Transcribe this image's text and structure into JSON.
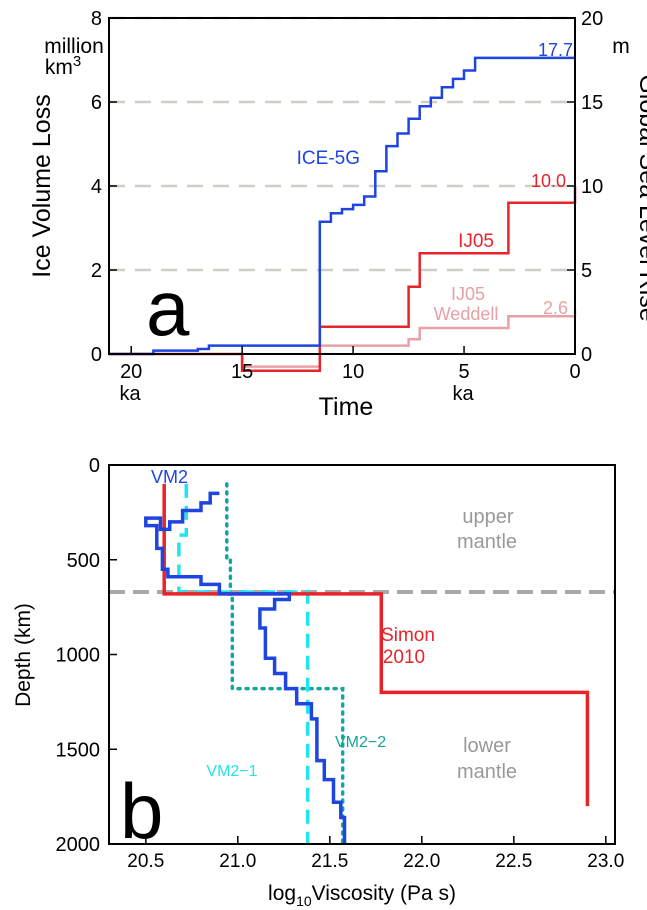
{
  "chart_data": [
    {
      "panel": "a",
      "type": "line",
      "panel_label": "a",
      "xlabel": "Time",
      "x_unit_left": "ka",
      "x_unit_right": "ka",
      "x_reversed": true,
      "xlim": [
        21,
        0
      ],
      "x_ticks": [
        20,
        15,
        10,
        5,
        0
      ],
      "ylabel_left": "Ice Volume Loss",
      "ylabel_left_unit": [
        "million",
        "km3"
      ],
      "ylim_left": [
        0,
        8
      ],
      "y_ticks_left": [
        0,
        2,
        4,
        6,
        8
      ],
      "ylabel_right": "Global Sea Level Rise",
      "ylabel_right_unit": "m",
      "ylim_right": [
        0,
        20
      ],
      "y_ticks_right": [
        0,
        5,
        10,
        15,
        20
      ],
      "gridlines_right_axis_values": [
        5,
        10,
        15,
        20
      ],
      "series": [
        {
          "name": "ICE-5G",
          "color": "#1f45e0",
          "step": true,
          "end_label": "17.7",
          "points": [
            [
              21,
              0
            ],
            [
              19,
              0
            ],
            [
              19,
              0.08
            ],
            [
              17,
              0.08
            ],
            [
              17,
              0.12
            ],
            [
              16.5,
              0.12
            ],
            [
              16.5,
              0.2
            ],
            [
              11.5,
              0.2
            ],
            [
              11.5,
              3.15
            ],
            [
              11,
              3.15
            ],
            [
              11,
              3.35
            ],
            [
              10.5,
              3.35
            ],
            [
              10.5,
              3.45
            ],
            [
              10,
              3.45
            ],
            [
              10,
              3.55
            ],
            [
              9.5,
              3.55
            ],
            [
              9.5,
              3.75
            ],
            [
              9,
              3.75
            ],
            [
              9,
              4.35
            ],
            [
              8.5,
              4.35
            ],
            [
              8.5,
              4.95
            ],
            [
              8,
              4.95
            ],
            [
              8,
              5.25
            ],
            [
              7.5,
              5.25
            ],
            [
              7.5,
              5.6
            ],
            [
              7,
              5.6
            ],
            [
              7,
              5.9
            ],
            [
              6.5,
              5.9
            ],
            [
              6.5,
              6.1
            ],
            [
              6,
              6.1
            ],
            [
              6,
              6.35
            ],
            [
              5.5,
              6.35
            ],
            [
              5.5,
              6.55
            ],
            [
              5,
              6.55
            ],
            [
              5,
              6.75
            ],
            [
              4.5,
              6.75
            ],
            [
              4.5,
              7.05
            ],
            [
              0,
              7.05
            ]
          ]
        },
        {
          "name": "IJ05",
          "color": "#e8242a",
          "step": true,
          "end_label": "10.0",
          "points": [
            [
              21,
              0
            ],
            [
              15,
              0
            ],
            [
              15,
              -0.4
            ],
            [
              11.5,
              -0.4
            ],
            [
              11.5,
              0.65
            ],
            [
              7.5,
              0.65
            ],
            [
              7.5,
              1.6
            ],
            [
              7,
              1.6
            ],
            [
              7,
              2.4
            ],
            [
              3,
              2.4
            ],
            [
              3,
              3.6
            ],
            [
              0,
              3.6
            ],
            [
              0,
              4.0
            ]
          ]
        },
        {
          "name": "IJ05 Weddell",
          "label_lines": [
            "IJ05",
            "Weddell"
          ],
          "color": "#e8a1a6",
          "step": true,
          "end_label": "2.6",
          "points": [
            [
              15,
              0
            ],
            [
              15,
              -0.3
            ],
            [
              11.5,
              -0.3
            ],
            [
              11.5,
              0.2
            ],
            [
              7.5,
              0.2
            ],
            [
              7.5,
              0.35
            ],
            [
              7,
              0.35
            ],
            [
              7,
              0.62
            ],
            [
              3,
              0.62
            ],
            [
              3,
              0.9
            ],
            [
              0,
              0.9
            ],
            [
              0,
              1.05
            ]
          ]
        }
      ]
    },
    {
      "panel": "b",
      "type": "line",
      "panel_label": "b",
      "xlabel_pre": "log",
      "xlabel_sub": "10",
      "xlabel_post": "Viscosity (Pa s)",
      "xlim": [
        20.3,
        23.05
      ],
      "x_ticks": [
        "20.5",
        "21.0",
        "21.5",
        "22.0",
        "22.5",
        "23.0"
      ],
      "ylabel": "Depth (km)",
      "ylim": [
        0,
        2000
      ],
      "y_reversed": true,
      "y_ticks": [
        0,
        500,
        1000,
        1500,
        2000
      ],
      "boundary_depth": 670,
      "region_upper": [
        "upper",
        "mantle"
      ],
      "region_lower": [
        "lower",
        "mantle"
      ],
      "series": [
        {
          "name": "VM2",
          "color": "#1f45e0",
          "style": "solid",
          "points": [
            [
              20.9,
              150
            ],
            [
              20.85,
              150
            ],
            [
              20.85,
              200
            ],
            [
              20.8,
              200
            ],
            [
              20.8,
              240
            ],
            [
              20.7,
              240
            ],
            [
              20.7,
              300
            ],
            [
              20.63,
              300
            ],
            [
              20.63,
              340
            ],
            [
              20.58,
              340
            ],
            [
              20.58,
              280
            ],
            [
              20.5,
              280
            ],
            [
              20.5,
              320
            ],
            [
              20.56,
              320
            ],
            [
              20.56,
              440
            ],
            [
              20.59,
              440
            ],
            [
              20.59,
              550
            ],
            [
              20.62,
              550
            ],
            [
              20.62,
              590
            ],
            [
              20.8,
              590
            ],
            [
              20.8,
              630
            ],
            [
              20.9,
              630
            ],
            [
              20.9,
              680
            ],
            [
              21.28,
              680
            ],
            [
              21.28,
              710
            ],
            [
              21.2,
              710
            ],
            [
              21.2,
              760
            ],
            [
              21.12,
              760
            ],
            [
              21.12,
              860
            ],
            [
              21.15,
              860
            ],
            [
              21.15,
              1020
            ],
            [
              21.2,
              1020
            ],
            [
              21.2,
              1100
            ],
            [
              21.26,
              1100
            ],
            [
              21.26,
              1180
            ],
            [
              21.32,
              1180
            ],
            [
              21.32,
              1260
            ],
            [
              21.4,
              1260
            ],
            [
              21.4,
              1340
            ],
            [
              21.43,
              1340
            ],
            [
              21.43,
              1560
            ],
            [
              21.47,
              1560
            ],
            [
              21.47,
              1660
            ],
            [
              21.52,
              1660
            ],
            [
              21.52,
              1780
            ],
            [
              21.56,
              1780
            ],
            [
              21.56,
              1860
            ],
            [
              21.58,
              1860
            ],
            [
              21.58,
              2000
            ]
          ]
        },
        {
          "name": "VM2−1",
          "color": "#22e4ee",
          "style": "dashed",
          "points": [
            [
              20.72,
              100
            ],
            [
              20.72,
              370
            ],
            [
              20.68,
              370
            ],
            [
              20.68,
              670
            ],
            [
              21.38,
              670
            ],
            [
              21.38,
              2000
            ]
          ]
        },
        {
          "name": "VM2−2",
          "color": "#16a59e",
          "style": "dotted",
          "points": [
            [
              20.94,
              100
            ],
            [
              20.94,
              500
            ],
            [
              20.96,
              500
            ],
            [
              20.96,
              690
            ],
            [
              20.97,
              690
            ],
            [
              20.97,
              1180
            ],
            [
              21.57,
              1180
            ],
            [
              21.57,
              2000
            ]
          ]
        },
        {
          "name": "Simon 2010",
          "label_lines": [
            "Simon",
            "2010"
          ],
          "color": "#e8242a",
          "style": "solid",
          "points": [
            [
              20.6,
              100
            ],
            [
              20.6,
              680
            ],
            [
              21.78,
              680
            ],
            [
              21.78,
              1200
            ],
            [
              22.9,
              1200
            ],
            [
              22.9,
              1800
            ]
          ]
        }
      ]
    }
  ]
}
